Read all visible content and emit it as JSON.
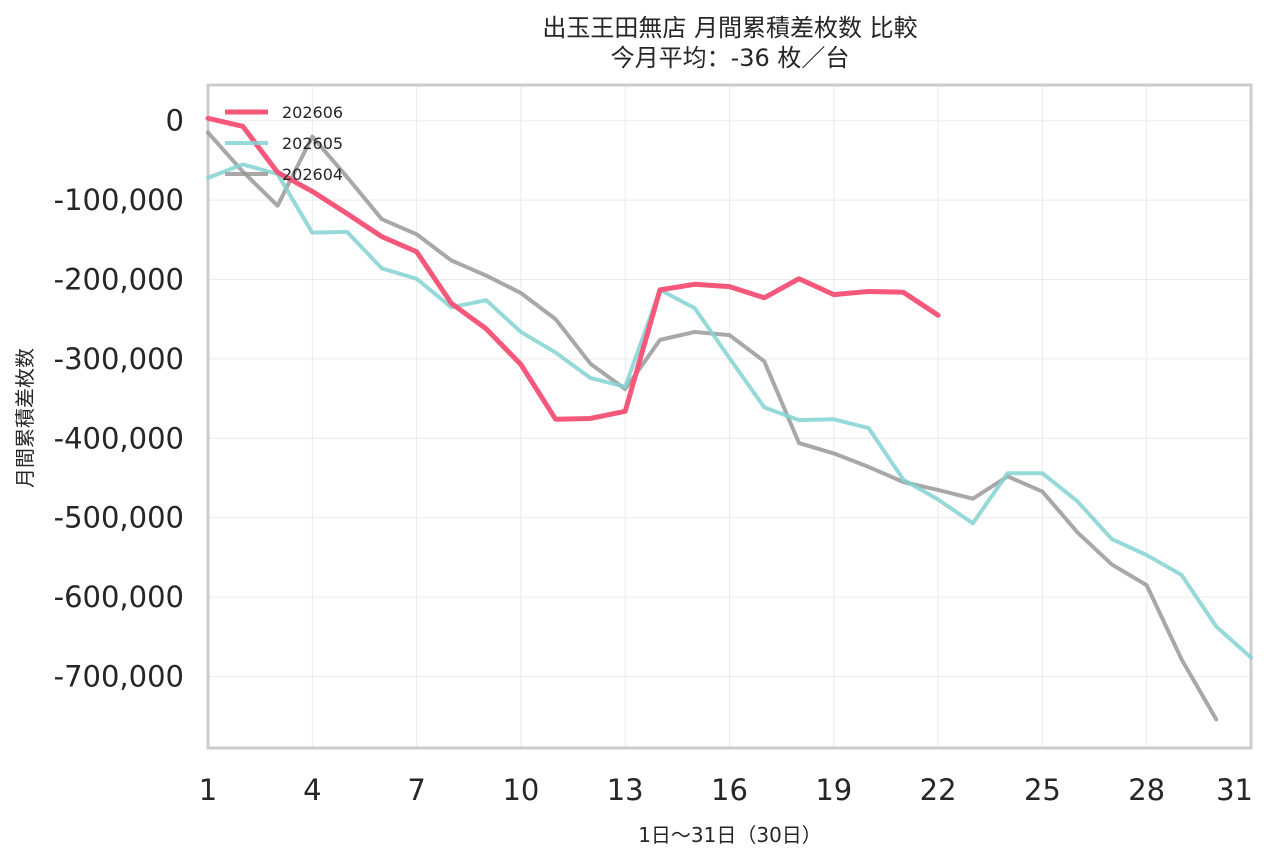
{
  "chart_data": {
    "type": "line",
    "title": "出玉王田無店 月間累積差枚数 比較",
    "subtitle": "今月平均：-36 枚／台",
    "xlabel": "1日〜31日（30日）",
    "ylabel": "月間累積差枚数",
    "xlim": [
      1,
      31
    ],
    "ylim": [
      -790000,
      45000
    ],
    "x_ticks": [
      1,
      4,
      7,
      10,
      13,
      16,
      19,
      22,
      25,
      28,
      31
    ],
    "y_ticks": [
      0,
      -100000,
      -200000,
      -300000,
      -400000,
      -500000,
      -600000,
      -700000
    ],
    "y_tick_labels": [
      "0",
      "-100,000",
      "-200,000",
      "-300,000",
      "-400,000",
      "-500,000",
      "-600,000",
      "-700,000"
    ],
    "grid": true,
    "legend_position": "top-left",
    "series": [
      {
        "name": "202606",
        "color": "#f5587a",
        "x": [
          1,
          2,
          3,
          4,
          5,
          6,
          7,
          8,
          9,
          10,
          11,
          12,
          13,
          14,
          15,
          16,
          17,
          18,
          19,
          20,
          21,
          22
        ],
        "values": [
          3000,
          -7000,
          -65000,
          -89000,
          -117000,
          -146000,
          -165000,
          -230000,
          -262000,
          -307000,
          -376000,
          -375000,
          -366000,
          -213000,
          -206000,
          -209000,
          -223000,
          -199000,
          -219000,
          -215000,
          -216000,
          -245000
        ]
      },
      {
        "name": "202605",
        "color": "#84d2d2",
        "x": [
          1,
          2,
          3,
          4,
          5,
          6,
          7,
          8,
          9,
          10,
          11,
          12,
          13,
          14,
          15,
          16,
          17,
          18,
          19,
          20,
          21,
          22,
          23,
          24,
          25,
          26,
          27,
          28,
          29,
          30,
          31
        ],
        "values": [
          -72000,
          -55000,
          -67000,
          -141000,
          -140000,
          -186000,
          -199000,
          -235000,
          -226000,
          -266000,
          -292000,
          -324000,
          -335000,
          -213000,
          -236000,
          -299000,
          -361000,
          -377000,
          -376000,
          -387000,
          -452000,
          -477000,
          -507000,
          -444000,
          -444000,
          -479000,
          -527000,
          -547000,
          -572000,
          -637000,
          -676000
        ]
      },
      {
        "name": "202604",
        "color": "#999999",
        "x": [
          1,
          2,
          3,
          4,
          5,
          6,
          7,
          8,
          9,
          10,
          11,
          12,
          13,
          14,
          15,
          16,
          17,
          18,
          19,
          20,
          21,
          22,
          23,
          24,
          25,
          26,
          27,
          28,
          29,
          30
        ],
        "values": [
          -15000,
          -64000,
          -107000,
          -20000,
          -71000,
          -124000,
          -143000,
          -176000,
          -195000,
          -217000,
          -250000,
          -306000,
          -338000,
          -276000,
          -266000,
          -270000,
          -303000,
          -406000,
          -419000,
          -436000,
          -455000,
          -465000,
          -476000,
          -448000,
          -467000,
          -518000,
          -559000,
          -585000,
          -678000,
          -754000
        ]
      }
    ]
  }
}
